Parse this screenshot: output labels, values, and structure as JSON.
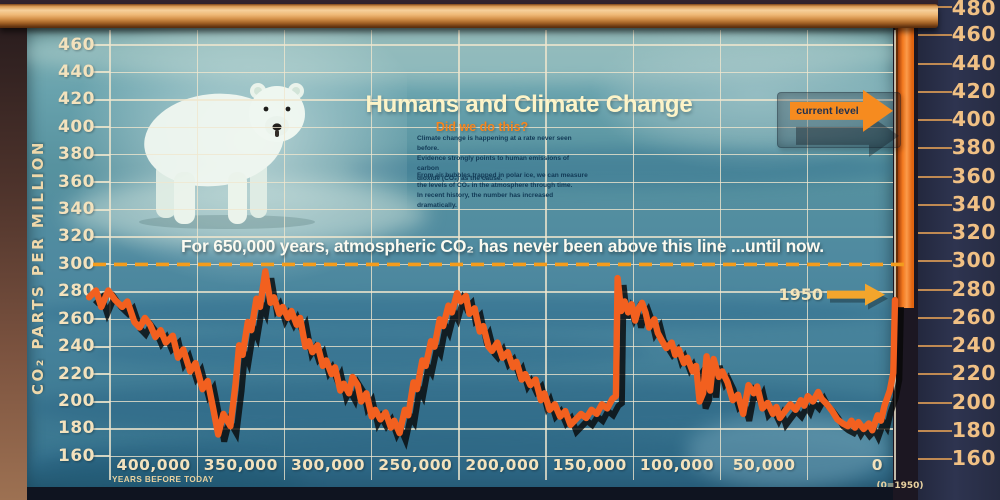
{
  "exhibit": {
    "title": "Humans and Climate Change",
    "subtitle": "Did we do this?",
    "body_par1": "Climate change is happening at a rate never seen before.\nEvidence strongly points to human emissions of carbon\ndioxide (CO₂) as the cause.",
    "body_par2": "From air bubbles trapped in polar ice, we can measure\nthe levels of CO₂ in the atmosphere through time.\nIn recent history, the number has increased dramatically.",
    "threshold_note": "For 650,000 years, atmospheric CO₂ has never been above this line ...until now.",
    "current_level_label": "current level",
    "year_1950_label": "1950"
  },
  "chart_data": {
    "type": "line",
    "ylabel": "CO₂ PARTS PER MILLION",
    "xlabel": "YEARS BEFORE TODAY",
    "x_zero_note": "(0=1950)",
    "ylim": [
      160,
      460
    ],
    "y_tick_step": 20,
    "x_axis": {
      "left_kyr": 450,
      "right_kyr": 0,
      "step_kyr": 50
    },
    "x_tick_labels": [
      "400,000",
      "350,000",
      "300,000",
      "250,000",
      "200,000",
      "150,000",
      "100,000",
      "50,000",
      "0"
    ],
    "threshold_ppm": 300,
    "current_level_ppm": 412,
    "arrow_1950_ppm": 278,
    "right_scale": {
      "min": 160,
      "max": 480,
      "step": 20
    },
    "grid": "on",
    "series": [
      {
        "name": "co2_ppm_kyr_before_today",
        "points": [
          [
            462,
            276
          ],
          [
            458,
            281
          ],
          [
            455,
            269
          ],
          [
            451,
            281
          ],
          [
            447,
            274
          ],
          [
            443,
            269
          ],
          [
            440,
            273
          ],
          [
            436,
            258
          ],
          [
            433,
            254
          ],
          [
            430,
            261
          ],
          [
            427,
            256
          ],
          [
            424,
            247
          ],
          [
            421,
            252
          ],
          [
            418,
            243
          ],
          [
            414,
            248
          ],
          [
            411,
            232
          ],
          [
            408,
            238
          ],
          [
            404,
            222
          ],
          [
            401,
            228
          ],
          [
            397,
            209
          ],
          [
            394,
            215
          ],
          [
            391,
            196
          ],
          [
            388,
            176
          ],
          [
            385,
            191
          ],
          [
            381,
            182
          ],
          [
            378,
            213
          ],
          [
            376,
            241
          ],
          [
            374,
            234
          ],
          [
            371,
            258
          ],
          [
            369,
            252
          ],
          [
            366,
            275
          ],
          [
            364,
            269
          ],
          [
            361,
            295
          ],
          [
            358,
            272
          ],
          [
            356,
            276
          ],
          [
            353,
            264
          ],
          [
            351,
            269
          ],
          [
            348,
            261
          ],
          [
            346,
            266
          ],
          [
            343,
            256
          ],
          [
            341,
            261
          ],
          [
            338,
            240
          ],
          [
            336,
            244
          ],
          [
            334,
            236
          ],
          [
            331,
            241
          ],
          [
            328,
            226
          ],
          [
            326,
            230
          ],
          [
            323,
            220
          ],
          [
            321,
            225
          ],
          [
            318,
            208
          ],
          [
            316,
            213
          ],
          [
            313,
            206
          ],
          [
            311,
            218
          ],
          [
            308,
            212
          ],
          [
            306,
            200
          ],
          [
            303,
            206
          ],
          [
            300,
            189
          ],
          [
            298,
            194
          ],
          [
            295,
            187
          ],
          [
            292,
            192
          ],
          [
            289,
            181
          ],
          [
            287,
            186
          ],
          [
            284,
            177
          ],
          [
            281,
            194
          ],
          [
            279,
            190
          ],
          [
            276,
            214
          ],
          [
            274,
            209
          ],
          [
            271,
            230
          ],
          [
            269,
            226
          ],
          [
            266,
            244
          ],
          [
            264,
            240
          ],
          [
            261,
            260
          ],
          [
            259,
            255
          ],
          [
            256,
            270
          ],
          [
            254,
            265
          ],
          [
            251,
            279
          ],
          [
            249,
            273
          ],
          [
            246,
            277
          ],
          [
            244,
            264
          ],
          [
            241,
            268
          ],
          [
            238,
            251
          ],
          [
            236,
            255
          ],
          [
            233,
            240
          ],
          [
            231,
            237
          ],
          [
            228,
            243
          ],
          [
            225,
            232
          ],
          [
            222,
            236
          ],
          [
            219,
            225
          ],
          [
            217,
            229
          ],
          [
            214,
            216
          ],
          [
            212,
            220
          ],
          [
            209,
            212
          ],
          [
            206,
            216
          ],
          [
            203,
            201
          ],
          [
            201,
            206
          ],
          [
            198,
            194
          ],
          [
            195,
            198
          ],
          [
            192,
            189
          ],
          [
            189,
            193
          ],
          [
            186,
            183
          ],
          [
            183,
            187
          ],
          [
            180,
            191
          ],
          [
            177,
            188
          ],
          [
            174,
            194
          ],
          [
            171,
            191
          ],
          [
            168,
            198
          ],
          [
            165,
            195
          ],
          [
            162,
            202
          ],
          [
            160,
            204
          ],
          [
            159,
            290
          ],
          [
            157,
            266
          ],
          [
            155,
            273
          ],
          [
            153,
            265
          ],
          [
            151,
            271
          ],
          [
            149,
            259
          ],
          [
            147,
            268
          ],
          [
            145,
            272
          ],
          [
            143,
            265
          ],
          [
            141,
            254
          ],
          [
            138,
            260
          ],
          [
            136,
            250
          ],
          [
            133,
            243
          ],
          [
            131,
            239
          ],
          [
            128,
            243
          ],
          [
            126,
            234
          ],
          [
            124,
            238
          ],
          [
            121,
            228
          ],
          [
            119,
            232
          ],
          [
            116,
            222
          ],
          [
            114,
            226
          ],
          [
            112,
            200
          ],
          [
            110,
            206
          ],
          [
            108,
            233
          ],
          [
            106,
            208
          ],
          [
            104,
            231
          ],
          [
            101,
            218
          ],
          [
            99,
            222
          ],
          [
            96,
            214
          ],
          [
            93,
            201
          ],
          [
            90,
            205
          ],
          [
            87,
            191
          ],
          [
            84,
            212
          ],
          [
            81,
            206
          ],
          [
            79,
            211
          ],
          [
            76,
            195
          ],
          [
            73,
            199
          ],
          [
            70,
            191
          ],
          [
            68,
            196
          ],
          [
            66,
            188
          ],
          [
            63,
            193
          ],
          [
            60,
            198
          ],
          [
            57,
            194
          ],
          [
            54,
            201
          ],
          [
            52,
            197
          ],
          [
            50,
            204
          ],
          [
            47,
            200
          ],
          [
            44,
            207
          ],
          [
            42,
            202
          ],
          [
            39,
            198
          ],
          [
            36,
            193
          ],
          [
            33,
            187
          ],
          [
            30,
            184
          ],
          [
            27,
            182
          ],
          [
            25,
            186
          ],
          [
            23,
            181
          ],
          [
            21,
            185
          ],
          [
            18,
            180
          ],
          [
            15,
            184
          ],
          [
            13,
            179
          ],
          [
            10,
            190
          ],
          [
            8,
            186
          ],
          [
            6,
            197
          ],
          [
            3,
            208
          ],
          [
            1,
            221
          ],
          [
            0.5,
            246
          ],
          [
            0,
            274
          ]
        ]
      }
    ]
  },
  "colors": {
    "curve": "#f2601f",
    "curve_shadow": "#070707",
    "threshold_dash": "#f49c1c",
    "grid": "#efe5cc",
    "axis_text": "#f3e2bd",
    "panel_text": "#f0c084",
    "banner_text": "#fbfaf0",
    "title_text": "#fdf4c8",
    "subtitle_text": "#f6851e",
    "body_text": "#123a56",
    "background_teal": "#4f8ba1",
    "frame_copper": "#e8a75c",
    "panel_bg": "#2b3048",
    "column_orange": "#f47b20",
    "arrow_orange": "#f68b1f"
  }
}
